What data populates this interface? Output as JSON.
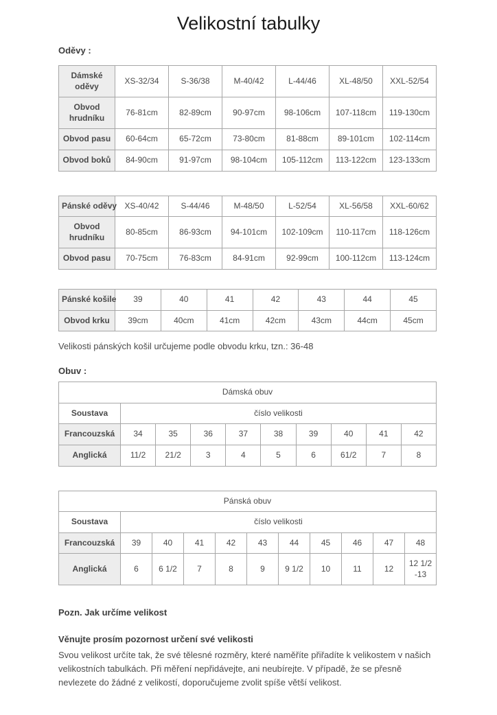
{
  "page": {
    "title": "Velikostní tabulky",
    "sections": {
      "clothing_heading": "Oděvy :",
      "shoes_heading": "Obuv :"
    },
    "notes": {
      "shirt_note": "Velikosti pánských košil určujeme podle obvodu krku, tzn.: 36-48",
      "footer_heading": "Pozn. Jak určíme velikost",
      "footer_subheading": "Věnujte prosím pozornost určení své velikosti",
      "footer_paragraph": "Svou velikost určíte tak, že své tělesné rozměry, které naměříte přiřadíte k velikostem v našich velikostních tabulkách. Při měření nepřidávejte, ani neubírejte. V případě, že se přesně nevlezete do žádné z velikostí, doporučujeme zvolit spíše větší velikost."
    }
  },
  "colors": {
    "table_border": "#a6a6a6",
    "label_cell_bg": "#ededed",
    "body_text": "#4a4a4a",
    "title_text": "#1b1b1b"
  },
  "tables": [
    {
      "id": "womens-clothing",
      "rows": [
        [
          {
            "t": "Dámské\noděvy",
            "label": true
          },
          "XS-32/34",
          "S-36/38",
          "M-40/42",
          "L-44/46",
          "XL-48/50",
          "XXL-52/54"
        ],
        [
          {
            "t": "Obvod\nhrudníku",
            "label": true
          },
          "76-81cm",
          "82-89cm",
          "90-97cm",
          "98-106cm",
          "107-118cm",
          "119-130cm"
        ],
        [
          {
            "t": "Obvod pasu",
            "label": true,
            "nw": true
          },
          "60-64cm",
          "65-72cm",
          "73-80cm",
          "81-88cm",
          "89-101cm",
          "102-114cm"
        ],
        [
          {
            "t": "Obvod boků",
            "label": true,
            "nw": true
          },
          "84-90cm",
          "91-97cm",
          "98-104cm",
          "105-112cm",
          "113-122cm",
          "123-133cm"
        ]
      ]
    },
    {
      "id": "mens-clothing",
      "rows": [
        [
          {
            "t": "Pánské oděvy",
            "label": true,
            "nw": true
          },
          "XS-40/42",
          "S-44/46",
          "M-48/50",
          "L-52/54",
          "XL-56/58",
          "XXL-60/62"
        ],
        [
          {
            "t": "Obvod\nhrudníku",
            "label": true
          },
          "80-85cm",
          "86-93cm",
          "94-101cm",
          "102-109cm",
          "110-117cm",
          "118-126cm"
        ],
        [
          {
            "t": "Obvod pasu",
            "label": true,
            "nw": true
          },
          "70-75cm",
          "76-83cm",
          "84-91cm",
          "92-99cm",
          "100-112cm",
          "113-124cm"
        ]
      ]
    },
    {
      "id": "mens-shirts",
      "rows": [
        [
          {
            "t": "Pánské košile",
            "label": true,
            "nw": true
          },
          "39",
          "40",
          "41",
          "42",
          "43",
          "44",
          "45"
        ],
        [
          {
            "t": "Obvod krku",
            "label": true,
            "nw": true
          },
          "39cm",
          "40cm",
          "41cm",
          "42cm",
          "43cm",
          "44cm",
          "45cm"
        ]
      ]
    },
    {
      "id": "womens-shoes",
      "rows": [
        [
          {
            "t": "Dámská obuv",
            "colspan": 10
          }
        ],
        [
          {
            "t": "Soustava",
            "bold": true
          },
          {
            "t": "číslo velikosti",
            "colspan": 9
          }
        ],
        [
          {
            "t": "Francouzská",
            "label": true
          },
          "34",
          "35",
          "36",
          "37",
          "38",
          "39",
          "40",
          "41",
          "42"
        ],
        [
          {
            "t": "Anglická",
            "label": true
          },
          "11/2",
          "21/2",
          "3",
          "4",
          "5",
          "6",
          "61/2",
          "7",
          "8"
        ]
      ]
    },
    {
      "id": "mens-shoes",
      "rows": [
        [
          {
            "t": "Pánská obuv",
            "colspan": 11
          }
        ],
        [
          {
            "t": "Soustava",
            "bold": true
          },
          {
            "t": "číslo velikosti",
            "colspan": 10
          }
        ],
        [
          {
            "t": "Francouzská",
            "label": true
          },
          "39",
          "40",
          "41",
          "42",
          "43",
          "44",
          "45",
          "46",
          "47",
          "48"
        ],
        [
          {
            "t": "Anglická",
            "label": true
          },
          "6",
          "6 1/2",
          "7",
          "8",
          "9",
          "9 1/2",
          "10",
          "11",
          "12",
          "12 1/2 -13"
        ]
      ]
    }
  ]
}
